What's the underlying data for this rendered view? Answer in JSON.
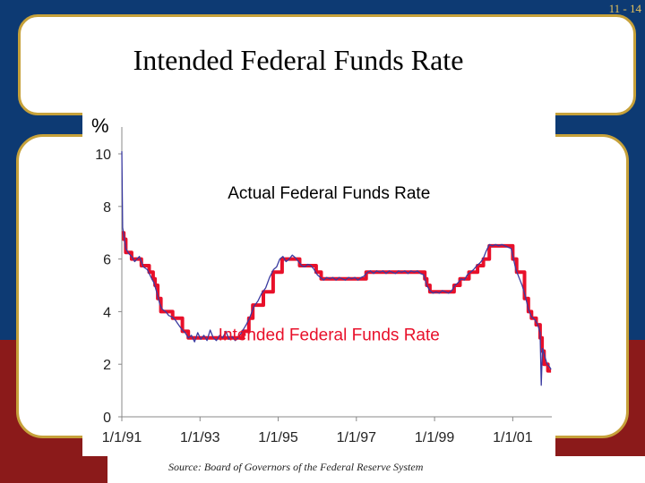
{
  "slide_number": "11 - 14",
  "title": "Intended Federal Funds Rate",
  "source": "Source: Board of Governors of the Federal Reserve System",
  "colors": {
    "actual": "#3a3aa0",
    "intended": "#e8102a",
    "frame": "#c6a13a",
    "navy": "#0d3a73",
    "maroon": "#8b1a1a"
  },
  "chart_data": {
    "type": "line",
    "ylabel": "%",
    "ylim": [
      0,
      10
    ],
    "yticks": [
      0,
      2,
      4,
      6,
      8,
      10
    ],
    "xlim": [
      1991.0,
      2002.0
    ],
    "xticks": [
      {
        "label": "1/1/91",
        "value": 1991
      },
      {
        "label": "1/1/93",
        "value": 1993
      },
      {
        "label": "1/1/95",
        "value": 1995
      },
      {
        "label": "1/1/97",
        "value": 1997
      },
      {
        "label": "1/1/99",
        "value": 1999
      },
      {
        "label": "1/1/01",
        "value": 2001
      }
    ],
    "annotations": [
      {
        "text": "Actual Federal Funds Rate",
        "series": "actual"
      },
      {
        "text": "Intended Federal Funds Rate",
        "series": "intended"
      }
    ],
    "series": [
      {
        "key": "intended",
        "name": "Intended Federal Funds Rate",
        "step": true,
        "points": [
          [
            1991.0,
            7.0
          ],
          [
            1991.05,
            6.75
          ],
          [
            1991.1,
            6.25
          ],
          [
            1991.25,
            6.0
          ],
          [
            1991.5,
            5.75
          ],
          [
            1991.7,
            5.5
          ],
          [
            1991.8,
            5.25
          ],
          [
            1991.85,
            5.0
          ],
          [
            1991.92,
            4.5
          ],
          [
            1992.0,
            4.0
          ],
          [
            1992.3,
            3.75
          ],
          [
            1992.55,
            3.25
          ],
          [
            1992.7,
            3.0
          ],
          [
            1994.1,
            3.25
          ],
          [
            1994.25,
            3.75
          ],
          [
            1994.35,
            4.25
          ],
          [
            1994.62,
            4.75
          ],
          [
            1994.87,
            5.5
          ],
          [
            1995.1,
            6.0
          ],
          [
            1995.55,
            5.75
          ],
          [
            1995.97,
            5.5
          ],
          [
            1996.1,
            5.25
          ],
          [
            1997.25,
            5.5
          ],
          [
            1998.75,
            5.25
          ],
          [
            1998.8,
            5.0
          ],
          [
            1998.88,
            4.75
          ],
          [
            1999.5,
            5.0
          ],
          [
            1999.65,
            5.25
          ],
          [
            1999.88,
            5.5
          ],
          [
            2000.1,
            5.75
          ],
          [
            2000.25,
            6.0
          ],
          [
            2000.4,
            6.5
          ],
          [
            2001.0,
            6.0
          ],
          [
            2001.1,
            5.5
          ],
          [
            2001.3,
            4.5
          ],
          [
            2001.4,
            4.0
          ],
          [
            2001.48,
            3.75
          ],
          [
            2001.6,
            3.5
          ],
          [
            2001.7,
            3.0
          ],
          [
            2001.75,
            2.5
          ],
          [
            2001.8,
            2.0
          ],
          [
            2001.9,
            1.75
          ],
          [
            2001.98,
            1.75
          ]
        ]
      },
      {
        "key": "actual",
        "name": "Actual Federal Funds Rate",
        "points": [
          [
            1991.0,
            10.1
          ],
          [
            1991.02,
            7.2
          ],
          [
            1991.05,
            6.9
          ],
          [
            1991.1,
            6.4
          ],
          [
            1991.18,
            6.2
          ],
          [
            1991.25,
            6.1
          ],
          [
            1991.33,
            5.9
          ],
          [
            1991.45,
            6.1
          ],
          [
            1991.55,
            5.7
          ],
          [
            1991.65,
            5.6
          ],
          [
            1991.75,
            5.3
          ],
          [
            1991.82,
            5.1
          ],
          [
            1991.9,
            4.7
          ],
          [
            1991.97,
            4.3
          ],
          [
            1992.03,
            4.1
          ],
          [
            1992.12,
            4.0
          ],
          [
            1992.2,
            3.85
          ],
          [
            1992.28,
            3.8
          ],
          [
            1992.36,
            3.7
          ],
          [
            1992.45,
            3.5
          ],
          [
            1992.55,
            3.3
          ],
          [
            1992.62,
            3.2
          ],
          [
            1992.7,
            3.0
          ],
          [
            1992.78,
            3.1
          ],
          [
            1992.86,
            2.85
          ],
          [
            1992.94,
            3.2
          ],
          [
            1993.02,
            2.95
          ],
          [
            1993.1,
            3.1
          ],
          [
            1993.18,
            2.9
          ],
          [
            1993.26,
            3.3
          ],
          [
            1993.34,
            3.0
          ],
          [
            1993.42,
            2.9
          ],
          [
            1993.5,
            3.1
          ],
          [
            1993.58,
            3.0
          ],
          [
            1993.66,
            3.25
          ],
          [
            1993.74,
            2.95
          ],
          [
            1993.82,
            3.05
          ],
          [
            1993.9,
            2.9
          ],
          [
            1993.98,
            3.0
          ],
          [
            1994.08,
            3.25
          ],
          [
            1994.18,
            3.5
          ],
          [
            1994.28,
            3.8
          ],
          [
            1994.38,
            4.2
          ],
          [
            1994.48,
            4.4
          ],
          [
            1994.58,
            4.7
          ],
          [
            1994.68,
            4.9
          ],
          [
            1994.78,
            5.3
          ],
          [
            1994.88,
            5.6
          ],
          [
            1994.96,
            5.7
          ],
          [
            1995.04,
            6.0
          ],
          [
            1995.12,
            6.1
          ],
          [
            1995.2,
            5.9
          ],
          [
            1995.28,
            6.0
          ],
          [
            1995.36,
            6.15
          ],
          [
            1995.44,
            6.05
          ],
          [
            1995.52,
            5.9
          ],
          [
            1995.6,
            5.75
          ],
          [
            1995.68,
            5.7
          ],
          [
            1995.76,
            5.8
          ],
          [
            1995.84,
            5.75
          ],
          [
            1995.92,
            5.6
          ],
          [
            1996.0,
            5.4
          ],
          [
            1996.08,
            5.3
          ],
          [
            1996.16,
            5.2
          ],
          [
            1996.24,
            5.3
          ],
          [
            1996.32,
            5.25
          ],
          [
            1996.4,
            5.3
          ],
          [
            1996.48,
            5.2
          ],
          [
            1996.56,
            5.3
          ],
          [
            1996.64,
            5.25
          ],
          [
            1996.72,
            5.2
          ],
          [
            1996.8,
            5.3
          ],
          [
            1996.88,
            5.25
          ],
          [
            1996.96,
            5.3
          ],
          [
            1997.04,
            5.2
          ],
          [
            1997.12,
            5.3
          ],
          [
            1997.2,
            5.35
          ],
          [
            1997.28,
            5.5
          ],
          [
            1997.36,
            5.55
          ],
          [
            1997.44,
            5.45
          ],
          [
            1997.52,
            5.55
          ],
          [
            1997.6,
            5.5
          ],
          [
            1997.68,
            5.55
          ],
          [
            1997.76,
            5.45
          ],
          [
            1997.84,
            5.55
          ],
          [
            1997.92,
            5.5
          ],
          [
            1998.0,
            5.45
          ],
          [
            1998.08,
            5.55
          ],
          [
            1998.16,
            5.5
          ],
          [
            1998.24,
            5.55
          ],
          [
            1998.32,
            5.45
          ],
          [
            1998.4,
            5.55
          ],
          [
            1998.48,
            5.5
          ],
          [
            1998.56,
            5.55
          ],
          [
            1998.64,
            5.45
          ],
          [
            1998.72,
            5.4
          ],
          [
            1998.8,
            5.0
          ],
          [
            1998.88,
            4.8
          ],
          [
            1998.96,
            4.7
          ],
          [
            1999.04,
            4.75
          ],
          [
            1999.12,
            4.7
          ],
          [
            1999.2,
            4.8
          ],
          [
            1999.28,
            4.75
          ],
          [
            1999.36,
            4.7
          ],
          [
            1999.44,
            4.8
          ],
          [
            1999.52,
            5.0
          ],
          [
            1999.6,
            5.1
          ],
          [
            1999.68,
            5.25
          ],
          [
            1999.76,
            5.2
          ],
          [
            1999.84,
            5.4
          ],
          [
            1999.92,
            5.5
          ],
          [
            2000.0,
            5.6
          ],
          [
            2000.08,
            5.75
          ],
          [
            2000.16,
            5.85
          ],
          [
            2000.24,
            6.0
          ],
          [
            2000.32,
            6.3
          ],
          [
            2000.4,
            6.55
          ],
          [
            2000.48,
            6.5
          ],
          [
            2000.56,
            6.55
          ],
          [
            2000.64,
            6.5
          ],
          [
            2000.72,
            6.55
          ],
          [
            2000.8,
            6.5
          ],
          [
            2000.88,
            6.45
          ],
          [
            2000.96,
            6.4
          ],
          [
            2001.02,
            6.0
          ],
          [
            2001.08,
            5.6
          ],
          [
            2001.16,
            5.3
          ],
          [
            2001.24,
            5.0
          ],
          [
            2001.32,
            4.6
          ],
          [
            2001.4,
            4.1
          ],
          [
            2001.48,
            3.8
          ],
          [
            2001.56,
            3.7
          ],
          [
            2001.64,
            3.5
          ],
          [
            2001.7,
            3.2
          ],
          [
            2001.73,
            1.2
          ],
          [
            2001.76,
            2.6
          ],
          [
            2001.82,
            2.3
          ],
          [
            2001.88,
            2.0
          ],
          [
            2001.94,
            1.9
          ],
          [
            2001.98,
            1.8
          ]
        ]
      }
    ]
  }
}
